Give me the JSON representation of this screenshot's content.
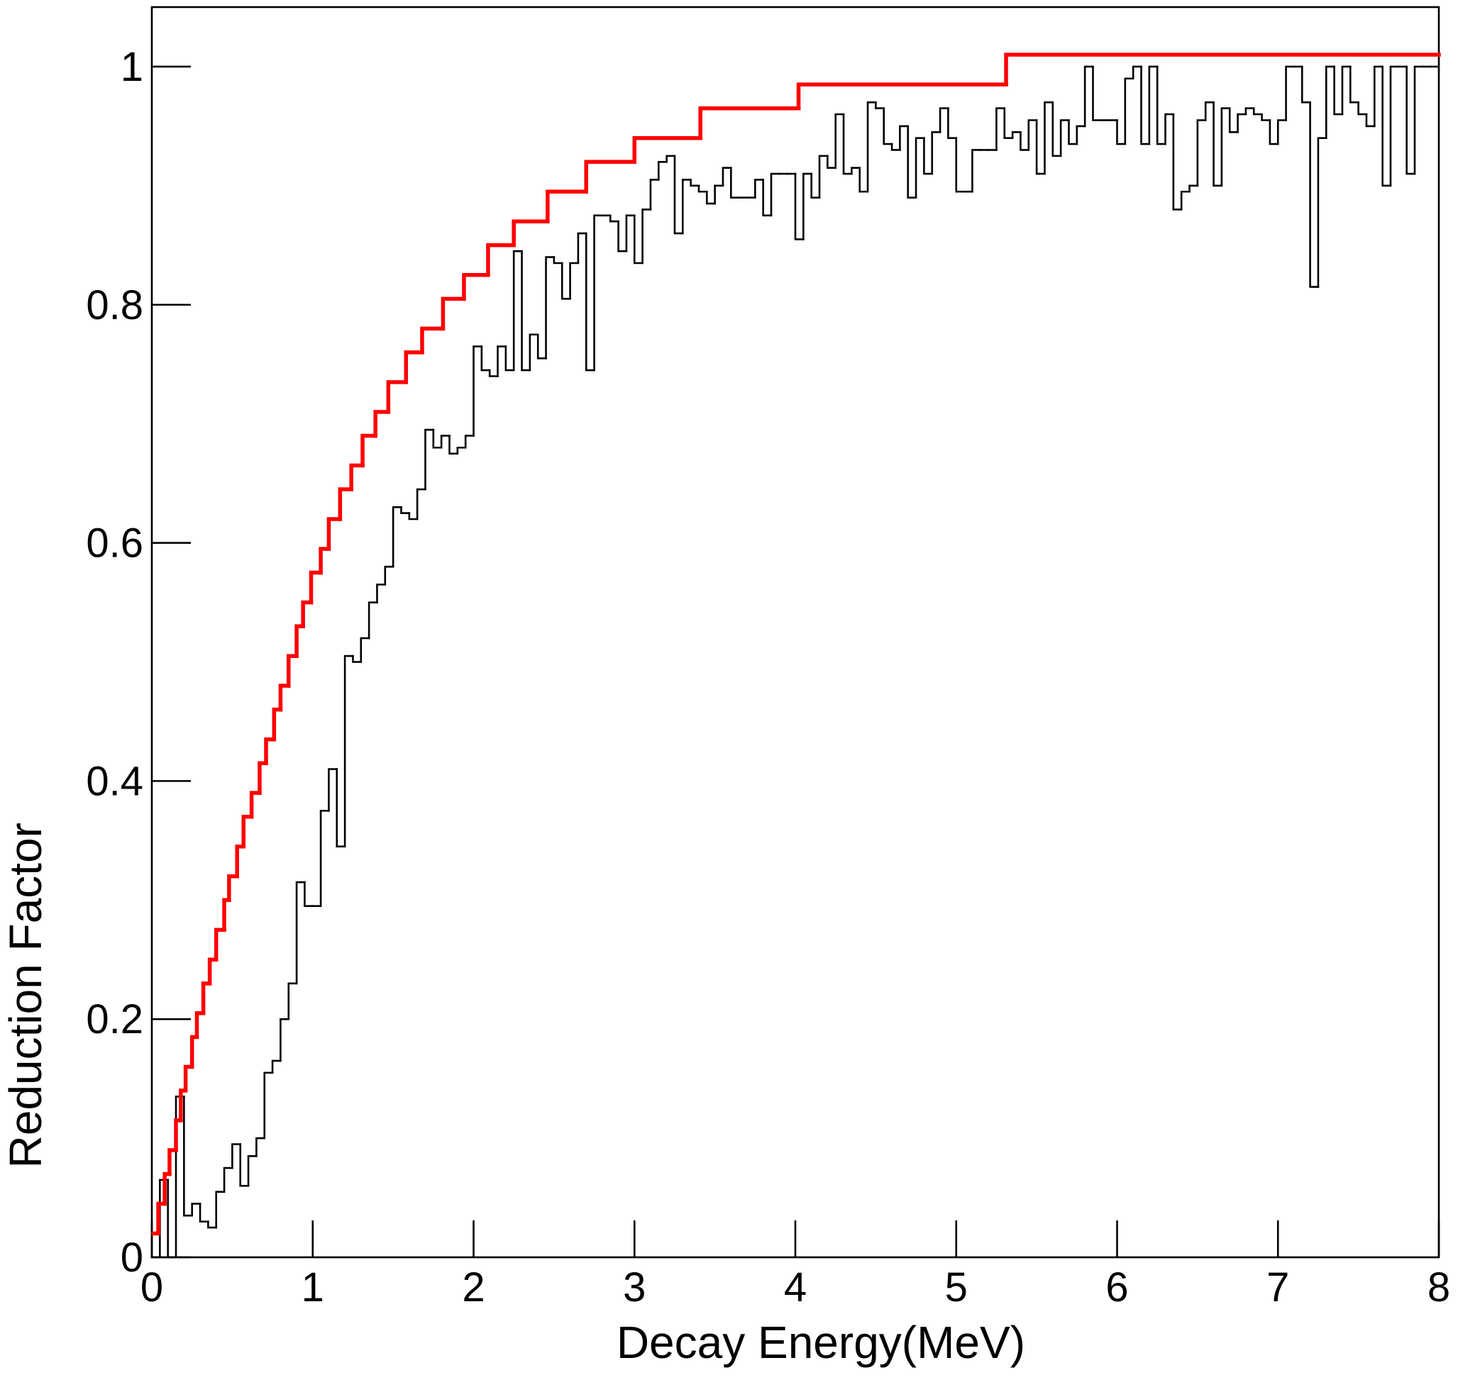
{
  "chart_data": {
    "type": "histogram",
    "x_label": "Decay Energy(MeV)",
    "y_label": "Reduction Factor",
    "xlim": [
      0,
      8
    ],
    "ylim": [
      0,
      1.05
    ],
    "xticks": [
      0,
      1,
      2,
      3,
      4,
      5,
      6,
      7,
      8
    ],
    "yticks": [
      0,
      0.2,
      0.4,
      0.6,
      0.8,
      1
    ],
    "series": [
      {
        "color": "#000000",
        "bins": [
          0,
          0.05,
          0.1,
          0.15,
          0.2,
          0.25,
          0.3,
          0.35,
          0.4,
          0.45,
          0.5,
          0.55,
          0.6,
          0.65,
          0.7,
          0.75,
          0.8,
          0.85,
          0.9,
          0.95,
          1,
          1.05,
          1.1,
          1.15,
          1.2,
          1.25,
          1.3,
          1.35,
          1.4,
          1.45,
          1.5,
          1.55,
          1.6,
          1.65,
          1.7,
          1.75,
          1.8,
          1.85,
          1.9,
          1.95,
          2,
          2.05,
          2.1,
          2.15,
          2.2,
          2.25,
          2.3,
          2.35,
          2.4,
          2.45,
          2.5,
          2.55,
          2.6,
          2.65,
          2.7,
          2.75,
          2.8,
          2.85,
          2.9,
          2.95,
          3,
          3.05,
          3.1,
          3.15,
          3.2,
          3.25,
          3.3,
          3.35,
          3.4,
          3.45,
          3.5,
          3.55,
          3.6,
          3.65,
          3.7,
          3.75,
          3.8,
          3.85,
          3.9,
          3.95,
          4,
          4.05,
          4.1,
          4.15,
          4.2,
          4.25,
          4.3,
          4.35,
          4.4,
          4.45,
          4.5,
          4.55,
          4.6,
          4.65,
          4.7,
          4.75,
          4.8,
          4.85,
          4.9,
          4.95,
          5,
          5.05,
          5.1,
          5.15,
          5.2,
          5.25,
          5.3,
          5.35,
          5.4,
          5.45,
          5.5,
          5.55,
          5.6,
          5.65,
          5.7,
          5.75,
          5.8,
          5.85,
          5.9,
          5.95,
          6,
          6.05,
          6.1,
          6.15,
          6.2,
          6.25,
          6.3,
          6.35,
          6.4,
          6.45,
          6.5,
          6.55,
          6.6,
          6.65,
          6.7,
          6.75,
          6.8,
          6.85,
          6.9,
          6.95,
          7,
          7.05,
          7.1,
          7.15,
          7.2,
          7.25,
          7.3,
          7.35,
          7.4,
          7.45,
          7.5,
          7.55,
          7.6,
          7.65,
          7.7,
          7.75,
          7.8,
          7.85,
          7.9,
          7.95,
          8
        ],
        "values": [
          0,
          0.065,
          0,
          0.135,
          0.035,
          0.045,
          0.03,
          0.025,
          0.055,
          0.075,
          0.095,
          0.06,
          0.085,
          0.1,
          0.155,
          0.165,
          0.2,
          0.23,
          0.315,
          0.295,
          0.295,
          0.375,
          0.41,
          0.345,
          0.505,
          0.5,
          0.52,
          0.55,
          0.565,
          0.58,
          0.63,
          0.625,
          0.62,
          0.645,
          0.695,
          0.68,
          0.69,
          0.675,
          0.68,
          0.69,
          0.765,
          0.745,
          0.74,
          0.765,
          0.745,
          0.845,
          0.745,
          0.775,
          0.755,
          0.84,
          0.835,
          0.805,
          0.835,
          0.86,
          0.745,
          0.875,
          0.875,
          0.87,
          0.845,
          0.875,
          0.835,
          0.88,
          0.905,
          0.92,
          0.925,
          0.86,
          0.905,
          0.9,
          0.895,
          0.885,
          0.9,
          0.915,
          0.89,
          0.89,
          0.89,
          0.905,
          0.875,
          0.91,
          0.91,
          0.91,
          0.855,
          0.91,
          0.89,
          0.925,
          0.915,
          0.96,
          0.91,
          0.915,
          0.895,
          0.97,
          0.965,
          0.935,
          0.93,
          0.95,
          0.89,
          0.94,
          0.91,
          0.945,
          0.965,
          0.94,
          0.895,
          0.895,
          0.93,
          0.93,
          0.93,
          0.965,
          0.94,
          0.945,
          0.93,
          0.955,
          0.91,
          0.97,
          0.925,
          0.955,
          0.935,
          0.95,
          1,
          0.955,
          0.955,
          0.955,
          0.935,
          0.99,
          1,
          0.935,
          1,
          0.935,
          0.96,
          0.88,
          0.895,
          0.9,
          0.955,
          0.97,
          0.9,
          0.965,
          0.945,
          0.96,
          0.965,
          0.96,
          0.955,
          0.935,
          0.955,
          1,
          1,
          0.97,
          0.815,
          0.94,
          1,
          0.96,
          1,
          0.97,
          0.96,
          0.95,
          1,
          0.9,
          1,
          1,
          0.91,
          1,
          1,
          1
        ]
      },
      {
        "color": "#ff0000",
        "bins": [
          0.01,
          0.04,
          0.08,
          0.11,
          0.15,
          0.18,
          0.21,
          0.25,
          0.28,
          0.32,
          0.36,
          0.4,
          0.45,
          0.48,
          0.53,
          0.57,
          0.62,
          0.67,
          0.71,
          0.76,
          0.8,
          0.85,
          0.9,
          0.94,
          0.99,
          1.05,
          1.1,
          1.17,
          1.24,
          1.31,
          1.39,
          1.47,
          1.58,
          1.68,
          1.81,
          1.94,
          2.09,
          2.25,
          2.46,
          2.7,
          3,
          3.41,
          4.02,
          5.31,
          8
        ],
        "values": [
          0.02,
          0.045,
          0.07,
          0.09,
          0.115,
          0.14,
          0.16,
          0.185,
          0.205,
          0.23,
          0.25,
          0.275,
          0.3,
          0.32,
          0.345,
          0.37,
          0.39,
          0.415,
          0.435,
          0.46,
          0.48,
          0.505,
          0.53,
          0.55,
          0.575,
          0.595,
          0.62,
          0.645,
          0.665,
          0.69,
          0.71,
          0.735,
          0.76,
          0.78,
          0.805,
          0.825,
          0.85,
          0.87,
          0.895,
          0.92,
          0.94,
          0.965,
          0.985,
          1.01
        ]
      }
    ]
  }
}
